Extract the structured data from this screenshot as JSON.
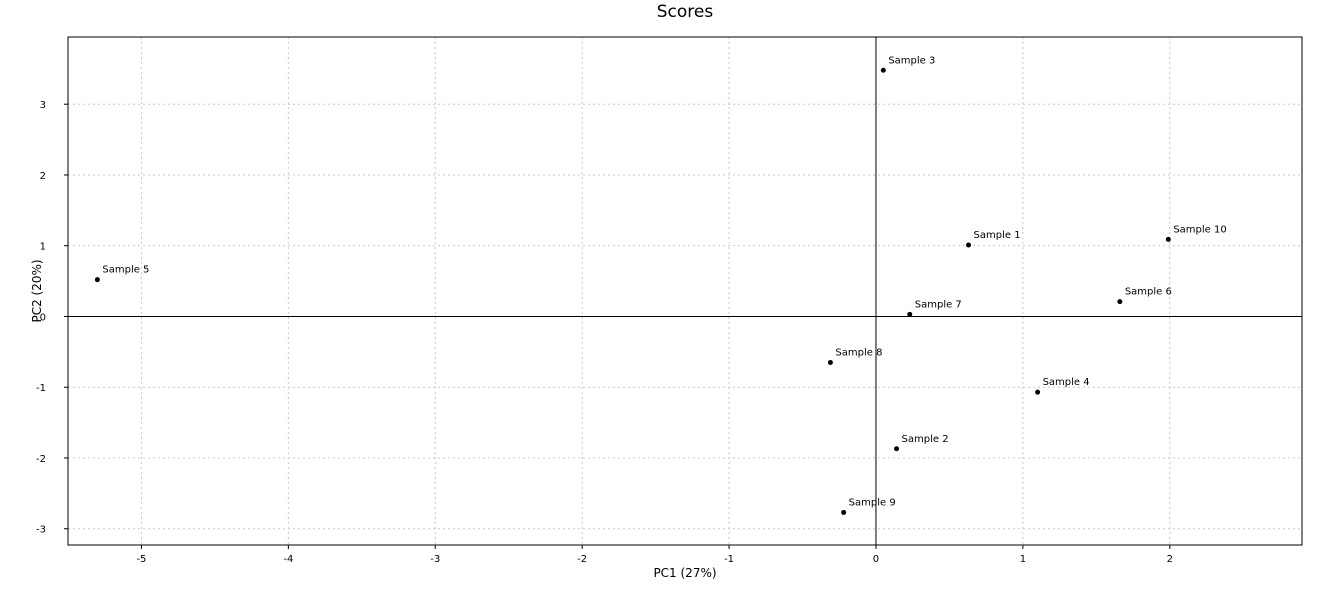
{
  "chart_data": {
    "type": "scatter",
    "title": "Scores",
    "xlabel": "PC1 (27%)",
    "ylabel": "PC2 (20%)",
    "xlim": [
      -5.5,
      2.9
    ],
    "ylim": [
      -3.23,
      3.95
    ],
    "xticks": [
      -5,
      -4,
      -3,
      -2,
      -1,
      0,
      1,
      2
    ],
    "yticks": [
      -3,
      -2,
      -1,
      0,
      1,
      2,
      3
    ],
    "grid": true,
    "zero_lines": true,
    "points": [
      {
        "label": "Sample 1",
        "x": 0.63,
        "y": 1.01
      },
      {
        "label": "Sample 2",
        "x": 0.14,
        "y": -1.87
      },
      {
        "label": "Sample 3",
        "x": 0.05,
        "y": 3.48
      },
      {
        "label": "Sample 4",
        "x": 1.1,
        "y": -1.07
      },
      {
        "label": "Sample 5",
        "x": -5.3,
        "y": 0.52
      },
      {
        "label": "Sample 6",
        "x": 1.66,
        "y": 0.21
      },
      {
        "label": "Sample 7",
        "x": 0.23,
        "y": 0.03
      },
      {
        "label": "Sample 8",
        "x": -0.31,
        "y": -0.65
      },
      {
        "label": "Sample 9",
        "x": -0.22,
        "y": -2.77
      },
      {
        "label": "Sample 10",
        "x": 1.99,
        "y": 1.09
      }
    ],
    "colors": {
      "point": "#000000",
      "grid": "#c8c8c8",
      "axis": "#000000"
    }
  }
}
